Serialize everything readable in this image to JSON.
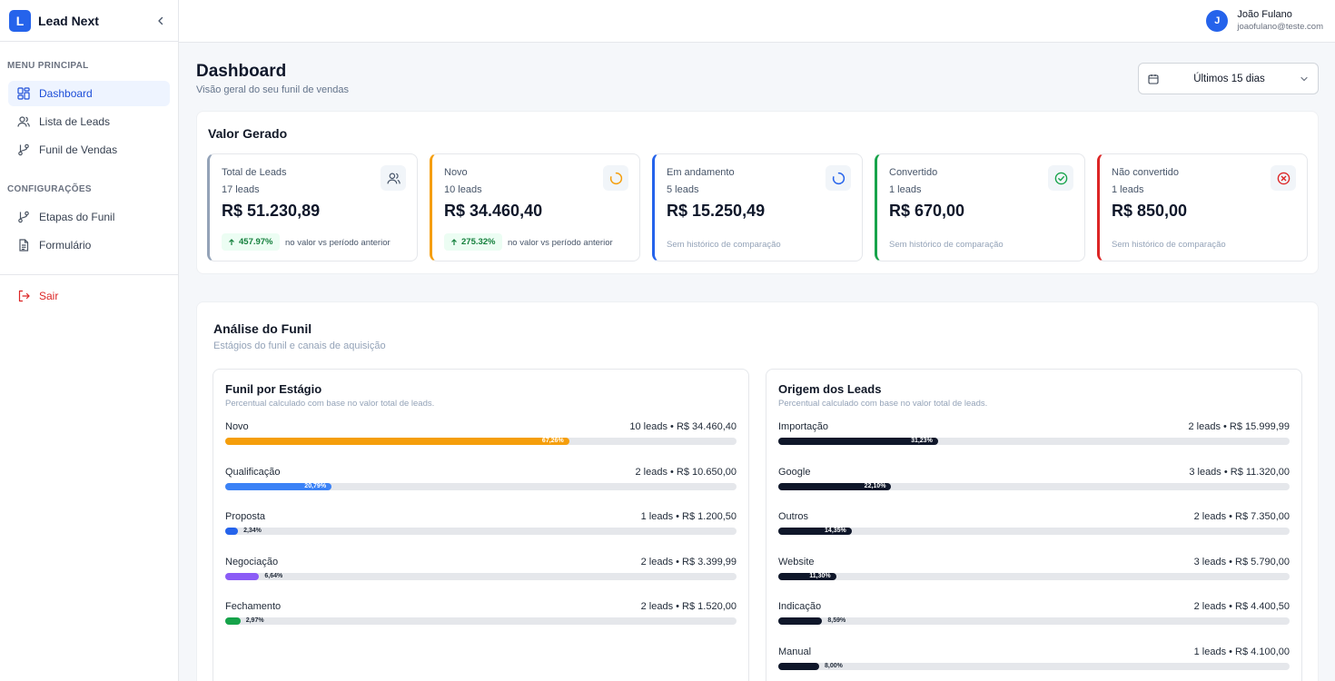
{
  "brand": {
    "logo_letter": "L",
    "name": "Lead Next"
  },
  "sidebar": {
    "sections": [
      {
        "title": "MENU PRINCIPAL",
        "items": [
          {
            "label": "Dashboard",
            "icon": "layout-grid-icon",
            "active": true
          },
          {
            "label": "Lista de Leads",
            "icon": "users-icon"
          },
          {
            "label": "Funil de Vendas",
            "icon": "git-branch-icon"
          }
        ]
      },
      {
        "title": "CONFIGURAÇÕES",
        "items": [
          {
            "label": "Etapas do Funil",
            "icon": "git-branch-icon"
          },
          {
            "label": "Formulário",
            "icon": "document-icon"
          }
        ]
      }
    ],
    "logout_label": "Sair"
  },
  "user": {
    "avatar_letter": "J",
    "name": "João Fulano",
    "email": "joaofulano@teste.com"
  },
  "header": {
    "title": "Dashboard",
    "subtitle": "Visão geral do seu funil de vendas",
    "date_range": "Últimos 15 dias"
  },
  "valor_gerado": {
    "title": "Valor Gerado",
    "cards": [
      {
        "title": "Total de Leads",
        "count": "17 leads",
        "value": "R$ 51.230,89",
        "badge": "457.97%",
        "compare": "no valor vs período anterior",
        "color": "#94a3b8",
        "icon": "users-icon"
      },
      {
        "title": "Novo",
        "count": "10 leads",
        "value": "R$ 34.460,40",
        "badge": "275.32%",
        "compare": "no valor vs período anterior",
        "color": "#f59e0b",
        "icon": "loader-icon"
      },
      {
        "title": "Em andamento",
        "count": "5 leads",
        "value": "R$ 15.250,49",
        "no_compare": "Sem histórico de comparação",
        "color": "#2563eb",
        "icon": "loader-icon"
      },
      {
        "title": "Convertido",
        "count": "1 leads",
        "value": "R$ 670,00",
        "no_compare": "Sem histórico de comparação",
        "color": "#16a34a",
        "icon": "check-circle-icon"
      },
      {
        "title": "Não convertido",
        "count": "1 leads",
        "value": "R$ 850,00",
        "no_compare": "Sem histórico de comparação",
        "color": "#dc2626",
        "icon": "x-circle-icon"
      }
    ]
  },
  "analise": {
    "title": "Análise do Funil",
    "subtitle": "Estágios do funil e canais de aquisição",
    "funil": {
      "title": "Funil por Estágio",
      "subtitle": "Percentual calculado com base no valor total de leads.",
      "rows": [
        {
          "label": "Novo",
          "meta": "10 leads • R$ 34.460,40",
          "pct": 67.26,
          "pct_label": "67,26%",
          "color": "#f59e0b"
        },
        {
          "label": "Qualificação",
          "meta": "2 leads • R$ 10.650,00",
          "pct": 20.79,
          "pct_label": "20,79%",
          "color": "#3b82f6"
        },
        {
          "label": "Proposta",
          "meta": "1 leads • R$ 1.200,50",
          "pct": 2.34,
          "pct_label": "2,34%",
          "color": "#2563eb"
        },
        {
          "label": "Negociação",
          "meta": "2 leads • R$ 3.399,99",
          "pct": 6.64,
          "pct_label": "6,64%",
          "color": "#8b5cf6"
        },
        {
          "label": "Fechamento",
          "meta": "2 leads • R$ 1.520,00",
          "pct": 2.97,
          "pct_label": "2,97%",
          "color": "#16a34a"
        }
      ]
    },
    "origem": {
      "title": "Origem dos Leads",
      "subtitle": "Percentual calculado com base no valor total de leads.",
      "rows": [
        {
          "label": "Importação",
          "meta": "2 leads • R$ 15.999,99",
          "pct": 31.23,
          "pct_label": "31,23%",
          "color": "#0f172a"
        },
        {
          "label": "Google",
          "meta": "3 leads • R$ 11.320,00",
          "pct": 22.1,
          "pct_label": "22,10%",
          "color": "#0f172a"
        },
        {
          "label": "Outros",
          "meta": "2 leads • R$ 7.350,00",
          "pct": 14.35,
          "pct_label": "14,35%",
          "color": "#0f172a"
        },
        {
          "label": "Website",
          "meta": "3 leads • R$ 5.790,00",
          "pct": 11.3,
          "pct_label": "11,30%",
          "color": "#0f172a"
        },
        {
          "label": "Indicação",
          "meta": "2 leads • R$ 4.400,50",
          "pct": 8.59,
          "pct_label": "8,59%",
          "color": "#0f172a"
        },
        {
          "label": "Manual",
          "meta": "1 leads • R$ 4.100,00",
          "pct": 8.0,
          "pct_label": "8,00%",
          "color": "#0f172a"
        }
      ]
    }
  }
}
